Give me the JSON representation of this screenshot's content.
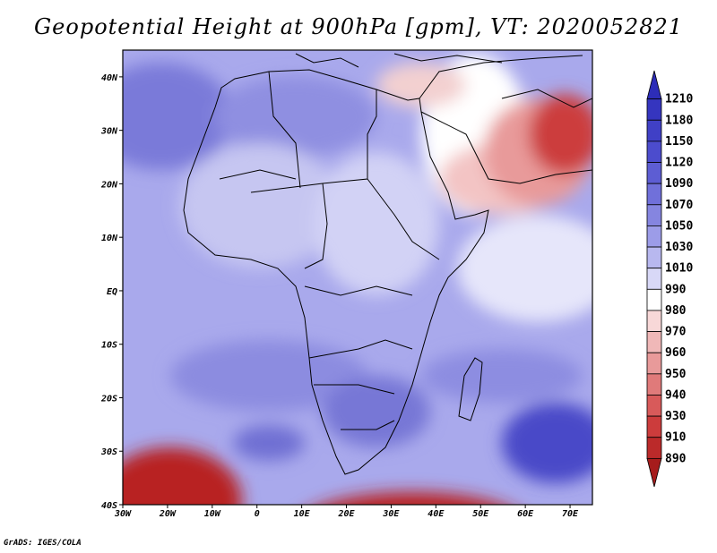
{
  "title": "Geopotential Height at 900hPa [gpm], VT: 2020052821",
  "credit": "GrADS: IGES/COLA",
  "map": {
    "lon_range": [
      -30,
      75
    ],
    "lat_range": [
      -40,
      45
    ],
    "x_ticks": [
      "30W",
      "20W",
      "10W",
      "0",
      "10E",
      "20E",
      "30E",
      "40E",
      "50E",
      "60E",
      "70E"
    ],
    "y_ticks": [
      "40N",
      "30N",
      "20N",
      "10N",
      "EQ",
      "10S",
      "20S",
      "30S",
      "40S"
    ]
  },
  "colorbar": {
    "labels": [
      "1210",
      "1180",
      "1150",
      "1120",
      "1090",
      "1070",
      "1050",
      "1030",
      "1010",
      "990",
      "980",
      "970",
      "960",
      "950",
      "940",
      "930",
      "910",
      "890"
    ],
    "colors": [
      "#2d2db8",
      "#3535bf",
      "#4040c6",
      "#4c4ccd",
      "#5d5dd3",
      "#7070da",
      "#8585e0",
      "#9c9ce8",
      "#b8b8ef",
      "#d8d8f7",
      "#ffffff",
      "#f8d8d8",
      "#f0b8b8",
      "#e89a9a",
      "#e07a7a",
      "#d85a5a",
      "#cc3c3c",
      "#bb2a2a",
      "#a61c1c"
    ]
  }
}
